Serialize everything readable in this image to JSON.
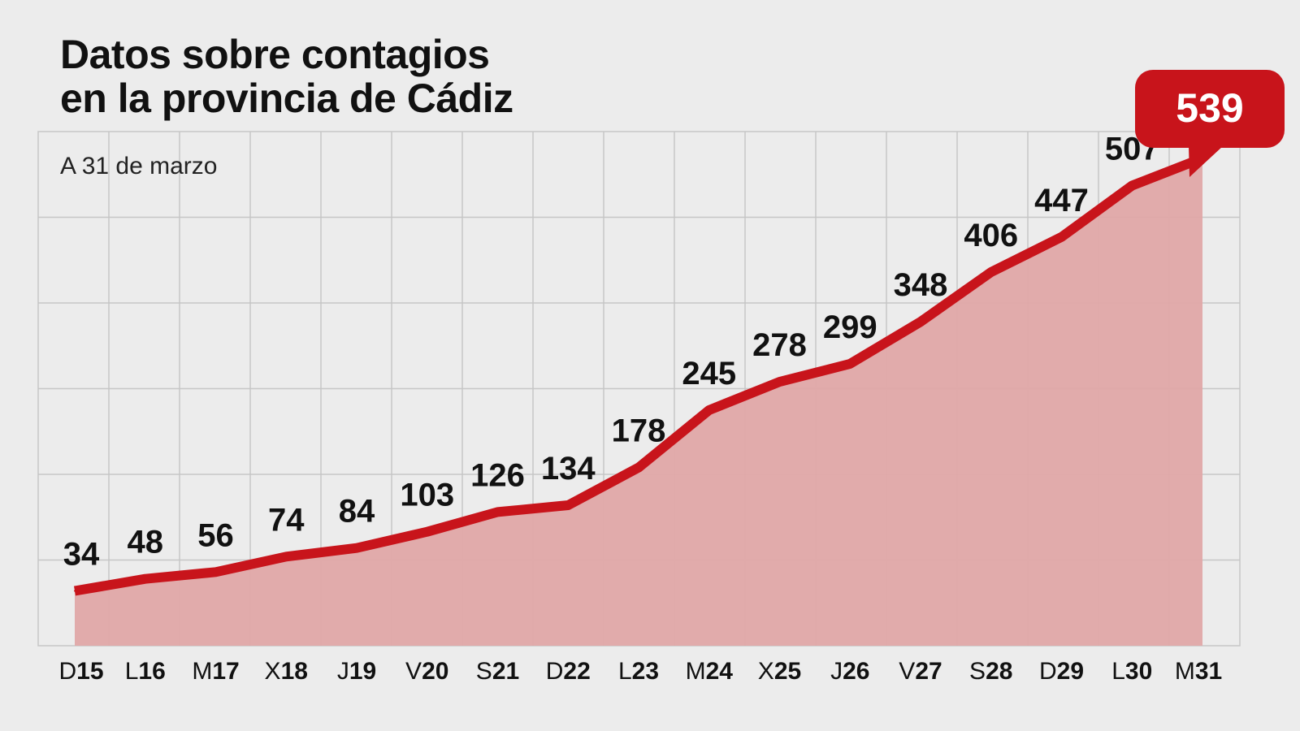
{
  "title_line1": "Datos sobre contagios",
  "title_line2": "en la provincia de Cádiz",
  "subtitle": "A 31 de marzo",
  "colors": {
    "background": "#ececec",
    "line": "#c8141b",
    "area": "#e0a8a8",
    "grid": "#c6c6c6",
    "callout": "#c8141b",
    "text": "#111111"
  },
  "chart_data": {
    "type": "area",
    "x": [
      {
        "prefix": "D",
        "day": "15"
      },
      {
        "prefix": "L",
        "day": "16"
      },
      {
        "prefix": "M",
        "day": "17"
      },
      {
        "prefix": "X",
        "day": "18"
      },
      {
        "prefix": "J",
        "day": "19"
      },
      {
        "prefix": "V",
        "day": "20"
      },
      {
        "prefix": "S",
        "day": "21"
      },
      {
        "prefix": "D",
        "day": "22"
      },
      {
        "prefix": "L",
        "day": "23"
      },
      {
        "prefix": "M",
        "day": "24"
      },
      {
        "prefix": "X",
        "day": "25"
      },
      {
        "prefix": "J",
        "day": "26"
      },
      {
        "prefix": "V",
        "day": "27"
      },
      {
        "prefix": "S",
        "day": "28"
      },
      {
        "prefix": "D",
        "day": "29"
      },
      {
        "prefix": "L",
        "day": "30"
      },
      {
        "prefix": "M",
        "day": "31"
      }
    ],
    "values": [
      34,
      48,
      56,
      74,
      84,
      103,
      126,
      134,
      178,
      245,
      278,
      299,
      348,
      406,
      447,
      507,
      539
    ],
    "labels": [
      "34",
      "48",
      "56",
      "74",
      "84",
      "103",
      "126",
      "134",
      "178",
      "245",
      "278",
      "299",
      "348",
      "406",
      "447",
      "507",
      "539"
    ],
    "highlight_label": "539",
    "ylim": [
      -30,
      570
    ],
    "grid": true
  }
}
